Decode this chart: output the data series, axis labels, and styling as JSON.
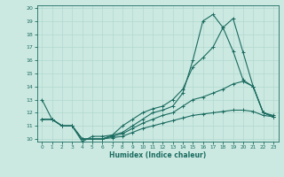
{
  "xlabel": "Humidex (Indice chaleur)",
  "xlim": [
    -0.5,
    23.5
  ],
  "ylim": [
    9.8,
    20.2
  ],
  "yticks": [
    10,
    11,
    12,
    13,
    14,
    15,
    16,
    17,
    18,
    19,
    20
  ],
  "xticks": [
    0,
    1,
    2,
    3,
    4,
    5,
    6,
    7,
    8,
    9,
    10,
    11,
    12,
    13,
    14,
    15,
    16,
    17,
    18,
    19,
    20,
    21,
    22,
    23
  ],
  "bg_color": "#cce9e1",
  "line_color": "#1a6b60",
  "grid_color": "#b0d8cf",
  "curve1_x": [
    0,
    1,
    2,
    3,
    4,
    5,
    6,
    7,
    8,
    9,
    10,
    11,
    12,
    13,
    14,
    15,
    16,
    17,
    18,
    19,
    20,
    21,
    22,
    23
  ],
  "curve1_y": [
    13.0,
    11.5,
    11.0,
    11.0,
    9.8,
    10.2,
    10.2,
    10.3,
    11.0,
    11.5,
    12.0,
    12.3,
    12.5,
    13.0,
    13.8,
    15.5,
    16.2,
    17.0,
    18.5,
    19.2,
    16.6,
    14.0,
    12.0,
    11.8
  ],
  "curve2_x": [
    0,
    1,
    2,
    3,
    4,
    5,
    6,
    7,
    8,
    9,
    10,
    11,
    12,
    13,
    14,
    15,
    16,
    17,
    18,
    19,
    20,
    21,
    22,
    23
  ],
  "curve2_y": [
    11.5,
    11.5,
    11.0,
    11.0,
    10.0,
    10.0,
    10.0,
    10.3,
    10.5,
    11.0,
    11.5,
    12.0,
    12.2,
    12.5,
    13.5,
    16.0,
    19.0,
    19.5,
    18.5,
    16.7,
    14.5,
    14.0,
    12.0,
    11.7
  ],
  "curve3_x": [
    0,
    1,
    2,
    3,
    4,
    5,
    6,
    7,
    8,
    9,
    10,
    11,
    12,
    13,
    14,
    15,
    16,
    17,
    18,
    19,
    20,
    21,
    22,
    23
  ],
  "curve3_y": [
    11.5,
    11.5,
    11.0,
    11.0,
    10.0,
    10.0,
    10.0,
    10.2,
    10.4,
    10.8,
    11.2,
    11.5,
    11.8,
    12.0,
    12.5,
    13.0,
    13.2,
    13.5,
    13.8,
    14.2,
    14.4,
    14.0,
    12.0,
    11.7
  ],
  "curve4_x": [
    0,
    1,
    2,
    3,
    4,
    5,
    6,
    7,
    8,
    9,
    10,
    11,
    12,
    13,
    14,
    15,
    16,
    17,
    18,
    19,
    20,
    21,
    22,
    23
  ],
  "curve4_y": [
    11.5,
    11.5,
    11.0,
    11.0,
    10.0,
    10.0,
    10.0,
    10.1,
    10.2,
    10.5,
    10.8,
    11.0,
    11.2,
    11.4,
    11.6,
    11.8,
    11.9,
    12.0,
    12.1,
    12.2,
    12.2,
    12.1,
    11.8,
    11.7
  ]
}
